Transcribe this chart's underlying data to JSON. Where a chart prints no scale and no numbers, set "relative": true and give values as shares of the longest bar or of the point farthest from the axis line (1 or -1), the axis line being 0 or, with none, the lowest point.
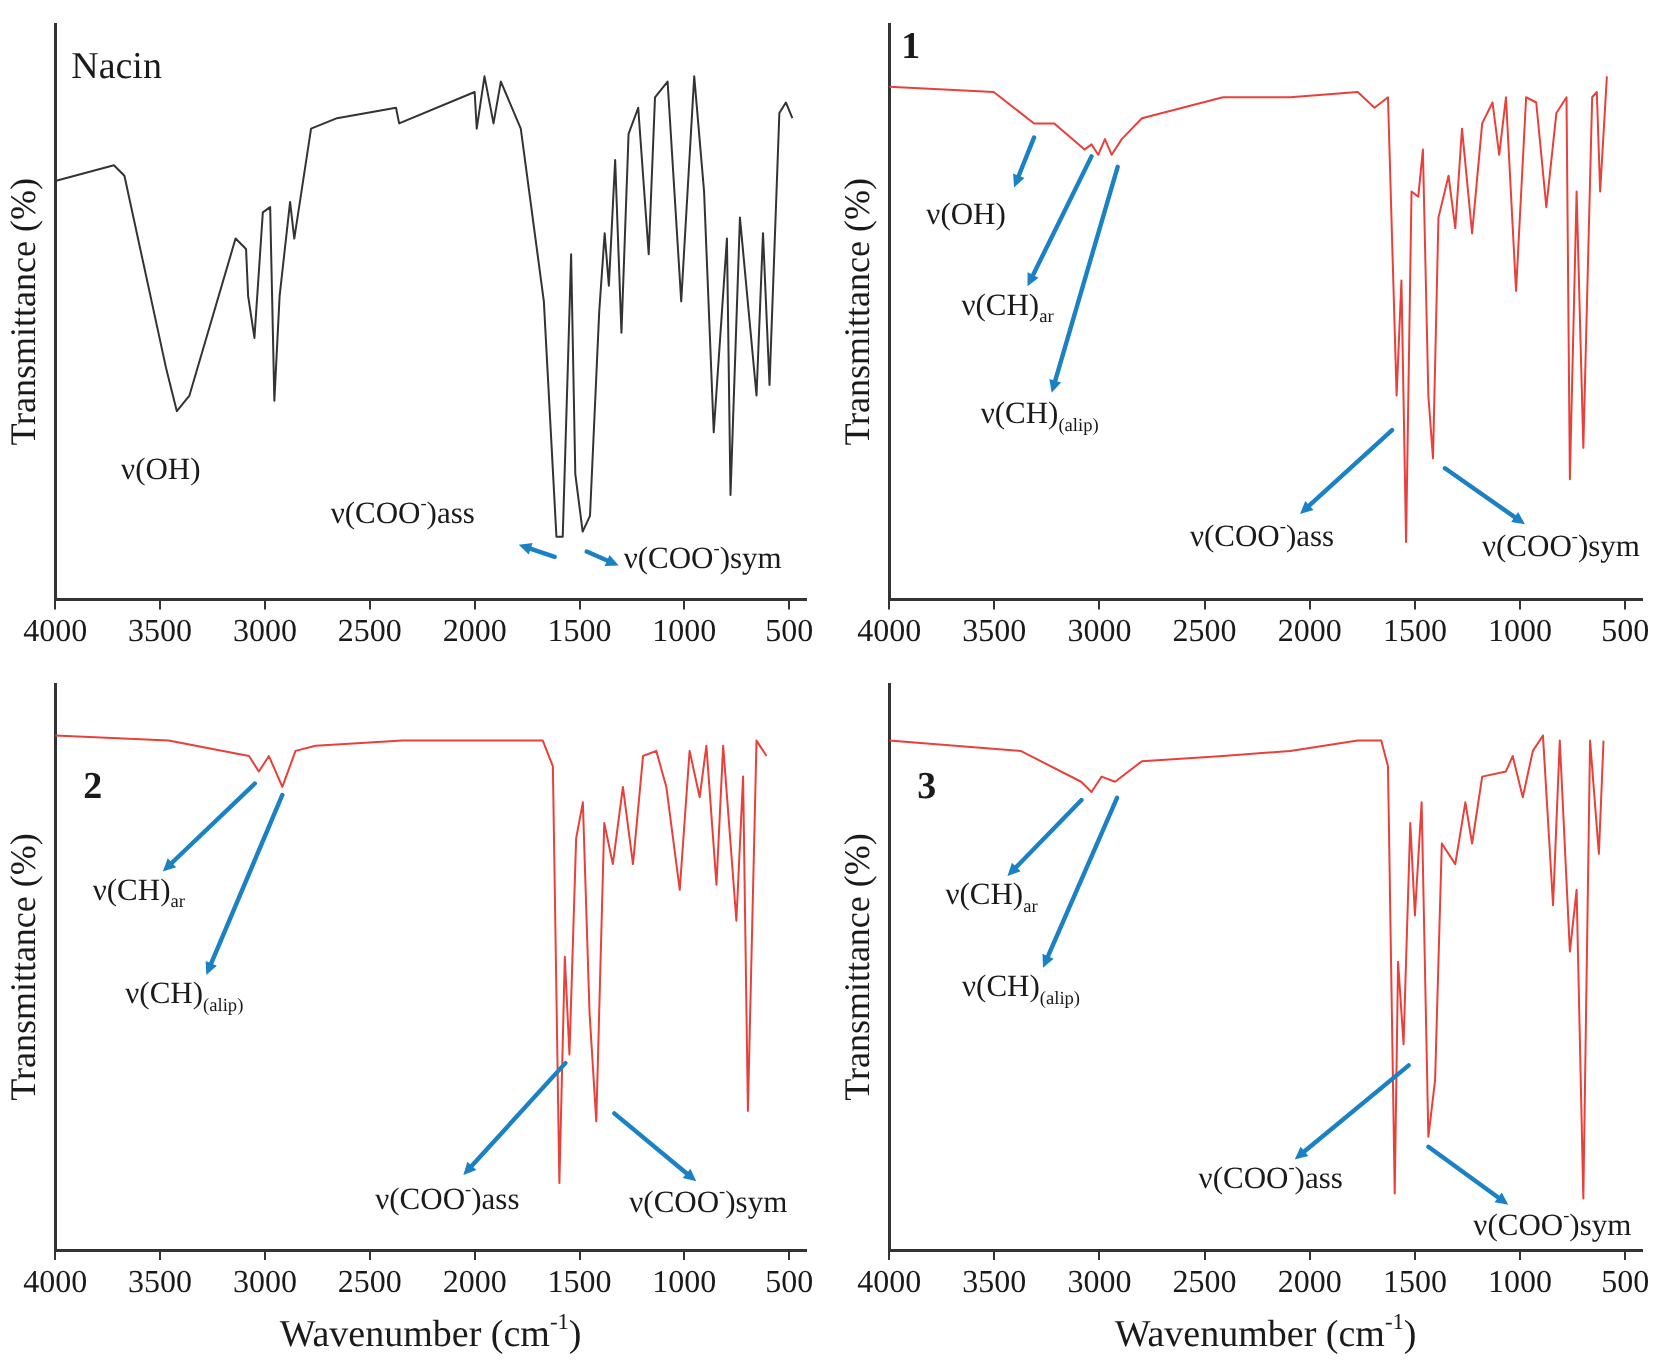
{
  "chart_data": [
    {
      "type": "line",
      "title": "Nacin",
      "ylabel": "Transmittance (%)",
      "relative": true,
      "xlim": [
        4000,
        420
      ],
      "xticks": [
        4000,
        3500,
        3000,
        2500,
        2000,
        1500,
        1000,
        500
      ],
      "tick_labels": "x",
      "grid": false,
      "legend": false,
      "x": [
        4000,
        3720,
        3670,
        3470,
        3420,
        3360,
        3140,
        3090,
        3080,
        3050,
        3010,
        2975,
        2955,
        2930,
        2880,
        2860,
        2780,
        2656,
        2375,
        2360,
        2000,
        1990,
        1953,
        1910,
        1875,
        1780,
        1670,
        1610,
        1580,
        1556,
        1540,
        1520,
        1485,
        1450,
        1406,
        1380,
        1360,
        1330,
        1300,
        1266,
        1220,
        1170,
        1140,
        1080,
        1015,
        953,
        906,
        860,
        797,
        780,
        735,
        656,
        625,
        594,
        547,
        516,
        485
      ],
      "series": [
        {
          "color": "#333333",
          "values": [
            0.8,
            0.83,
            0.81,
            0.44,
            0.36,
            0.39,
            0.69,
            0.67,
            0.58,
            0.5,
            0.74,
            0.75,
            0.38,
            0.58,
            0.76,
            0.69,
            0.9,
            0.92,
            0.94,
            0.91,
            0.97,
            0.9,
            1.0,
            0.91,
            0.99,
            0.9,
            0.57,
            0.12,
            0.12,
            0.44,
            0.66,
            0.24,
            0.13,
            0.16,
            0.55,
            0.7,
            0.6,
            0.84,
            0.51,
            0.89,
            0.94,
            0.66,
            0.96,
            0.99,
            0.57,
            1.0,
            0.78,
            0.32,
            0.69,
            0.2,
            0.73,
            0.39,
            0.7,
            0.41,
            0.93,
            0.95,
            0.92
          ]
        }
      ],
      "annotations": [
        {
          "text": "ν(OH)",
          "x": 3420,
          "y": 0.36
        },
        {
          "text": "ν(COO$^{-}$)ass",
          "x": 1580,
          "y": 0.12
        },
        {
          "text": "ν(COO$^{-}$)sym",
          "x": 1485,
          "y": 0.13
        }
      ]
    },
    {
      "type": "line",
      "title": "1",
      "ylabel": "Transmittance (%)",
      "relative": true,
      "xlim": [
        4000,
        420
      ],
      "xticks": [
        4000,
        3500,
        3000,
        2500,
        2000,
        1500,
        1000,
        500
      ],
      "tick_labels": "x",
      "grid": false,
      "legend": false,
      "x": [
        4000,
        3503,
        3311,
        3215,
        3071,
        3038,
        3006,
        2974,
        2942,
        2894,
        2798,
        2413,
        2093,
        1772,
        1692,
        1628,
        1587,
        1564,
        1542,
        1516,
        1484,
        1462,
        1436,
        1414,
        1388,
        1340,
        1308,
        1276,
        1228,
        1180,
        1131,
        1099,
        1067,
        1019,
        971,
        923,
        875,
        827,
        779,
        763,
        731,
        699,
        657,
        635,
        619,
        587
      ],
      "series": [
        {
          "color": "#e8403a",
          "values": [
            0.98,
            0.97,
            0.91,
            0.91,
            0.86,
            0.87,
            0.85,
            0.88,
            0.85,
            0.88,
            0.92,
            0.96,
            0.96,
            0.97,
            0.94,
            0.96,
            0.39,
            0.61,
            0.11,
            0.78,
            0.77,
            0.86,
            0.39,
            0.27,
            0.73,
            0.81,
            0.71,
            0.9,
            0.7,
            0.91,
            0.95,
            0.85,
            0.96,
            0.59,
            0.96,
            0.95,
            0.75,
            0.93,
            0.96,
            0.23,
            0.78,
            0.29,
            0.96,
            0.97,
            0.78,
            1.0
          ]
        }
      ],
      "annotations": [
        {
          "text": "ν(OH)",
          "x": 3311,
          "y": 0.91
        },
        {
          "text": "ν(CH)$_{ar}$",
          "x": 3038,
          "y": 0.87
        },
        {
          "text": "ν(CH)$_{(alip)}$",
          "x": 2942,
          "y": 0.85
        },
        {
          "text": "ν(COO$^{-}$)ass",
          "x": 1542,
          "y": 0.11
        },
        {
          "text": "ν(COO$^{-}$)sym",
          "x": 1414,
          "y": 0.27
        }
      ]
    },
    {
      "type": "line",
      "title": "2",
      "xlabel": "Wavenumber (cm$^{-1}$)",
      "ylabel": "Transmittance (%)",
      "relative": true,
      "xlim": [
        4000,
        420
      ],
      "xticks": [
        4000,
        3500,
        3000,
        2500,
        2000,
        1500,
        1000,
        500
      ],
      "tick_labels": "x",
      "grid": false,
      "legend": false,
      "x": [
        4000,
        3459,
        3076,
        3029,
        2981,
        2917,
        2854,
        2758,
        2344,
        1675,
        1627,
        1596,
        1570,
        1548,
        1516,
        1484,
        1452,
        1420,
        1382,
        1341,
        1293,
        1245,
        1197,
        1134,
        1086,
        1022,
        975,
        927,
        895,
        847,
        815,
        752,
        720,
        697,
        656,
        608
      ],
      "series": [
        {
          "color": "#e8403a",
          "values": [
            1.0,
            0.99,
            0.96,
            0.93,
            0.96,
            0.9,
            0.97,
            0.98,
            0.99,
            0.99,
            0.94,
            0.13,
            0.57,
            0.38,
            0.8,
            0.87,
            0.46,
            0.25,
            0.83,
            0.75,
            0.9,
            0.75,
            0.96,
            0.97,
            0.9,
            0.7,
            0.97,
            0.88,
            0.98,
            0.71,
            0.98,
            0.64,
            0.92,
            0.27,
            0.99,
            0.96
          ]
        }
      ],
      "annotations": [
        {
          "text": "ν(CH)$_{ar}$",
          "x": 3029,
          "y": 0.93
        },
        {
          "text": "ν(CH)$_{(alip)}$",
          "x": 2917,
          "y": 0.9
        },
        {
          "text": "ν(COO$^{-}$)ass",
          "x": 1596,
          "y": 0.13
        },
        {
          "text": "ν(COO$^{-}$)sym",
          "x": 1420,
          "y": 0.25
        }
      ]
    },
    {
      "type": "line",
      "title": "3",
      "xlabel": "Wavenumber (cm$^{-1}$)",
      "ylabel": "Transmittance (%)",
      "relative": true,
      "xlim": [
        4000,
        420
      ],
      "xticks": [
        4000,
        3500,
        3000,
        2500,
        2000,
        1500,
        1000,
        500
      ],
      "tick_labels": "x",
      "grid": false,
      "legend": false,
      "x": [
        4000,
        3375,
        3087,
        3038,
        2990,
        2926,
        2798,
        2413,
        2093,
        1772,
        1660,
        1628,
        1596,
        1580,
        1554,
        1522,
        1500,
        1468,
        1436,
        1404,
        1372,
        1308,
        1260,
        1228,
        1180,
        1067,
        1035,
        987,
        939,
        891,
        843,
        811,
        763,
        731,
        699,
        667,
        625,
        603
      ],
      "series": [
        {
          "color": "#e8403a",
          "values": [
            0.99,
            0.97,
            0.91,
            0.89,
            0.92,
            0.91,
            0.95,
            0.96,
            0.97,
            0.99,
            0.99,
            0.94,
            0.11,
            0.56,
            0.4,
            0.83,
            0.65,
            0.87,
            0.22,
            0.33,
            0.79,
            0.75,
            0.87,
            0.79,
            0.92,
            0.93,
            0.96,
            0.88,
            0.97,
            1.0,
            0.67,
            0.99,
            0.58,
            0.7,
            0.1,
            0.99,
            0.77,
            0.99
          ]
        }
      ],
      "annotations": [
        {
          "text": "ν(CH)$_{ar}$",
          "x": 3038,
          "y": 0.89
        },
        {
          "text": "ν(CH)$_{(alip)}$",
          "x": 2926,
          "y": 0.91
        },
        {
          "text": "ν(COO$^{-}$)ass",
          "x": 1596,
          "y": 0.11
        },
        {
          "text": "ν(COO$^{-}$)sym",
          "x": 1436,
          "y": 0.22
        }
      ]
    }
  ]
}
